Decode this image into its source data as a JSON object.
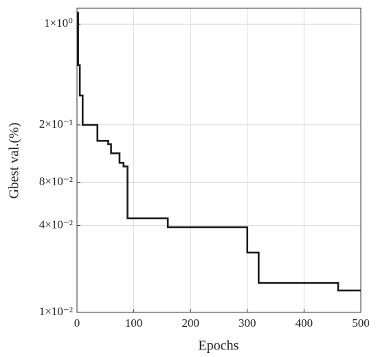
{
  "chart_data": {
    "type": "line",
    "x_label": "Epochs",
    "y_label": "Gbest val.(%)",
    "x": [
      0,
      2,
      2,
      5,
      5,
      10,
      10,
      36,
      36,
      55,
      55,
      60,
      60,
      75,
      75,
      82,
      82,
      89,
      89,
      160,
      160,
      300,
      300,
      320,
      320,
      460,
      460,
      500
    ],
    "series": [
      {
        "color": "#1a1a1a",
        "values": [
          1.2,
          1.2,
          0.52,
          0.52,
          0.32,
          0.32,
          0.2,
          0.2,
          0.155,
          0.155,
          0.147,
          0.147,
          0.127,
          0.127,
          0.109,
          0.109,
          0.103,
          0.103,
          0.045,
          0.045,
          0.039,
          0.039,
          0.026,
          0.026,
          0.016,
          0.016,
          0.0142,
          0.0142
        ]
      }
    ],
    "xlim": [
      0,
      500
    ],
    "xticks": [
      0,
      100,
      200,
      300,
      400,
      500
    ],
    "ylim": [
      0.01,
      1.29
    ],
    "log_y": true,
    "yticks": [
      {
        "value": 0.01,
        "label": "1×10⁻²"
      },
      {
        "value": 0.04,
        "label": "4×10⁻²"
      },
      {
        "value": 0.08,
        "label": "8×10⁻²"
      },
      {
        "value": 0.2,
        "label": "2×10⁻¹"
      },
      {
        "value": 1,
        "label": "1×10⁰"
      }
    ],
    "grid": true
  }
}
